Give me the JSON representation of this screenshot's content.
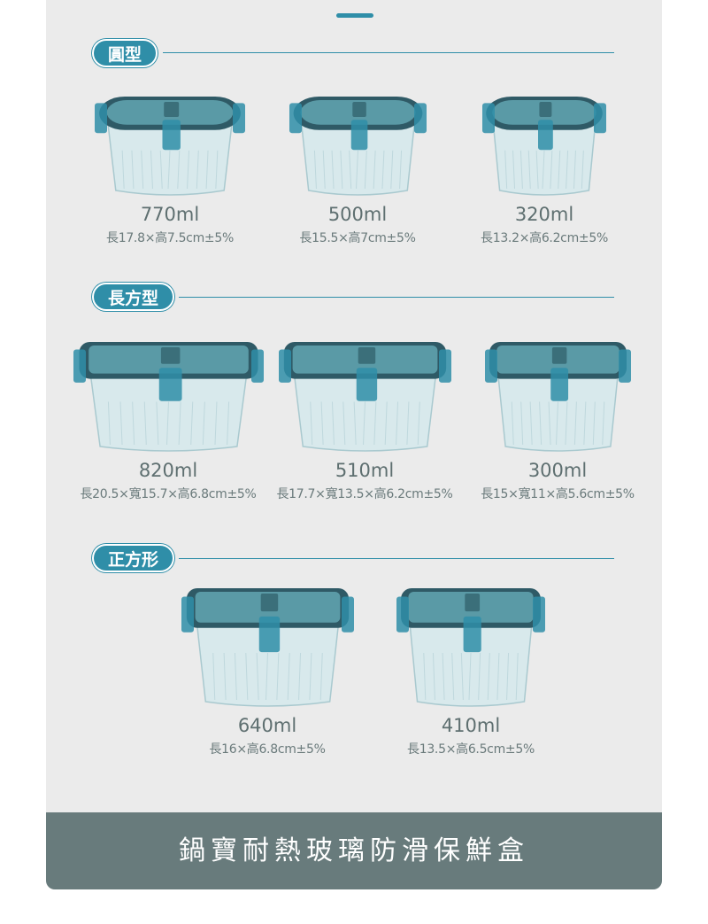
{
  "sections": [
    {
      "title": "圓型",
      "shape": "round",
      "items": [
        {
          "capacity": "770ml",
          "spec": "長17.8×高7.5cm±5%"
        },
        {
          "capacity": "500ml",
          "spec": "長15.5×高7cm±5%"
        },
        {
          "capacity": "320ml",
          "spec": "長13.2×高6.2cm±5%"
        }
      ]
    },
    {
      "title": "長方型",
      "shape": "rectangle",
      "items": [
        {
          "capacity": "820ml",
          "spec": "長20.5×寬15.7×高6.8cm±5%"
        },
        {
          "capacity": "510ml",
          "spec": "長17.7×寬13.5×高6.2cm±5%"
        },
        {
          "capacity": "300ml",
          "spec": "長15×寬11×高5.6cm±5%"
        }
      ]
    },
    {
      "title": "正方形",
      "shape": "square",
      "items": [
        {
          "capacity": "640ml",
          "spec": "長16×高6.8cm±5%"
        },
        {
          "capacity": "410ml",
          "spec": "長13.5×高6.5cm±5%"
        }
      ]
    }
  ],
  "footer": {
    "title": "鍋寶耐熱玻璃防滑保鮮盒"
  },
  "colors": {
    "accent": "#2f8ea8",
    "lid": "#2f5a66",
    "footer": "#687b7c",
    "panel": "#ebebeb"
  }
}
